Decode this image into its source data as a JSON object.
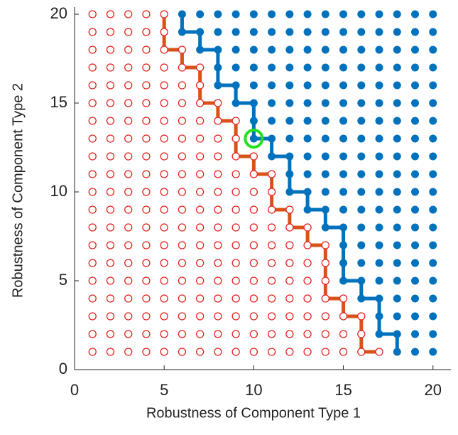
{
  "chart_data": {
    "type": "scatter",
    "xlabel": "Robustness of Component Type 1",
    "ylabel": "Robustness of Component Type 2",
    "xlim": [
      0,
      21
    ],
    "ylim": [
      0,
      20.4
    ],
    "xticks": [
      0,
      5,
      10,
      15,
      20
    ],
    "yticks": [
      0,
      5,
      10,
      15,
      20
    ],
    "lines": [
      {
        "color": "#d95319",
        "x": [
          5,
          5,
          5,
          6,
          6,
          7,
          7,
          7,
          8,
          8,
          9,
          9,
          9,
          10,
          10,
          11,
          11,
          11,
          12,
          12,
          13,
          13,
          14,
          14,
          14,
          14,
          15,
          15,
          16,
          16,
          16,
          17
        ],
        "y": [
          20,
          19,
          18,
          18,
          17,
          17,
          16,
          15,
          15,
          14,
          14,
          13,
          12,
          12,
          11,
          11,
          10,
          9,
          9,
          8,
          8,
          7,
          7,
          6,
          5,
          4,
          4,
          3,
          3,
          2,
          1,
          1
        ]
      },
      {
        "color": "#0072bd",
        "x": [
          6,
          6,
          7,
          7,
          8,
          8,
          8,
          9,
          9,
          10,
          10,
          10,
          11,
          11,
          12,
          12,
          12,
          13,
          13,
          14,
          14,
          15,
          15,
          15,
          15,
          16,
          16,
          17,
          17,
          17,
          18,
          18
        ],
        "y": [
          20,
          19,
          19,
          18,
          18,
          17,
          16,
          16,
          15,
          15,
          14,
          13,
          13,
          12,
          12,
          11,
          10,
          10,
          9,
          9,
          8,
          8,
          7,
          6,
          5,
          5,
          4,
          4,
          3,
          2,
          2,
          1
        ]
      }
    ],
    "series": [
      {
        "color": "#e3211c",
        "marker": "open",
        "rows": [
          {
            "y": 20,
            "x": [
              1,
              2,
              3,
              4,
              5
            ]
          },
          {
            "y": 19,
            "x": [
              1,
              2,
              3,
              4,
              5
            ]
          },
          {
            "y": 18,
            "x": [
              1,
              2,
              3,
              4,
              5,
              6
            ]
          },
          {
            "y": 17,
            "x": [
              1,
              2,
              3,
              4,
              5,
              6,
              7
            ]
          },
          {
            "y": 16,
            "x": [
              1,
              2,
              3,
              4,
              5,
              6,
              7
            ]
          },
          {
            "y": 15,
            "x": [
              1,
              2,
              3,
              4,
              5,
              6,
              7,
              8
            ]
          },
          {
            "y": 14,
            "x": [
              1,
              2,
              3,
              4,
              5,
              6,
              7,
              8,
              9
            ]
          },
          {
            "y": 13,
            "x": [
              1,
              2,
              3,
              4,
              5,
              6,
              7,
              8,
              9
            ]
          },
          {
            "y": 12,
            "x": [
              1,
              2,
              3,
              4,
              5,
              6,
              7,
              8,
              9,
              10
            ]
          },
          {
            "y": 11,
            "x": [
              1,
              2,
              3,
              4,
              5,
              6,
              7,
              8,
              9,
              10,
              11
            ]
          },
          {
            "y": 10,
            "x": [
              1,
              2,
              3,
              4,
              5,
              6,
              7,
              8,
              9,
              10,
              11
            ]
          },
          {
            "y": 9,
            "x": [
              1,
              2,
              3,
              4,
              5,
              6,
              7,
              8,
              9,
              10,
              11,
              12
            ]
          },
          {
            "y": 8,
            "x": [
              1,
              2,
              3,
              4,
              5,
              6,
              7,
              8,
              9,
              10,
              11,
              12,
              13
            ]
          },
          {
            "y": 7,
            "x": [
              1,
              2,
              3,
              4,
              5,
              6,
              7,
              8,
              9,
              10,
              11,
              12,
              13,
              14
            ]
          },
          {
            "y": 6,
            "x": [
              1,
              2,
              3,
              4,
              5,
              6,
              7,
              8,
              9,
              10,
              11,
              12,
              13,
              14
            ]
          },
          {
            "y": 5,
            "x": [
              1,
              2,
              3,
              4,
              5,
              6,
              7,
              8,
              9,
              10,
              11,
              12,
              13,
              14
            ]
          },
          {
            "y": 4,
            "x": [
              1,
              2,
              3,
              4,
              5,
              6,
              7,
              8,
              9,
              10,
              11,
              12,
              13,
              14,
              15
            ]
          },
          {
            "y": 3,
            "x": [
              1,
              2,
              3,
              4,
              5,
              6,
              7,
              8,
              9,
              10,
              11,
              12,
              13,
              14,
              15,
              16
            ]
          },
          {
            "y": 2,
            "x": [
              1,
              2,
              3,
              4,
              5,
              6,
              7,
              8,
              9,
              10,
              11,
              12,
              13,
              14,
              15,
              16
            ]
          },
          {
            "y": 1,
            "x": [
              1,
              2,
              3,
              4,
              5,
              6,
              7,
              8,
              9,
              10,
              11,
              12,
              13,
              14,
              15,
              16,
              17
            ]
          }
        ]
      },
      {
        "color": "#0072bd",
        "marker": "filled",
        "rows": [
          {
            "y": 20,
            "x": [
              6,
              7,
              8,
              9,
              10,
              11,
              12,
              13,
              14,
              15,
              16,
              17,
              18,
              19,
              20
            ]
          },
          {
            "y": 19,
            "x": [
              6,
              7,
              8,
              9,
              10,
              11,
              12,
              13,
              14,
              15,
              16,
              17,
              18,
              19,
              20
            ]
          },
          {
            "y": 18,
            "x": [
              7,
              8,
              9,
              10,
              11,
              12,
              13,
              14,
              15,
              16,
              17,
              18,
              19,
              20
            ]
          },
          {
            "y": 17,
            "x": [
              8,
              9,
              10,
              11,
              12,
              13,
              14,
              15,
              16,
              17,
              18,
              19,
              20
            ]
          },
          {
            "y": 16,
            "x": [
              8,
              9,
              10,
              11,
              12,
              13,
              14,
              15,
              16,
              17,
              18,
              19,
              20
            ]
          },
          {
            "y": 15,
            "x": [
              9,
              10,
              11,
              12,
              13,
              14,
              15,
              16,
              17,
              18,
              19,
              20
            ]
          },
          {
            "y": 14,
            "x": [
              10,
              11,
              12,
              13,
              14,
              15,
              16,
              17,
              18,
              19,
              20
            ]
          },
          {
            "y": 13,
            "x": [
              10,
              11,
              12,
              13,
              14,
              15,
              16,
              17,
              18,
              19,
              20
            ]
          },
          {
            "y": 12,
            "x": [
              11,
              12,
              13,
              14,
              15,
              16,
              17,
              18,
              19,
              20
            ]
          },
          {
            "y": 11,
            "x": [
              12,
              13,
              14,
              15,
              16,
              17,
              18,
              19,
              20
            ]
          },
          {
            "y": 10,
            "x": [
              12,
              13,
              14,
              15,
              16,
              17,
              18,
              19,
              20
            ]
          },
          {
            "y": 9,
            "x": [
              13,
              14,
              15,
              16,
              17,
              18,
              19,
              20
            ]
          },
          {
            "y": 8,
            "x": [
              14,
              15,
              16,
              17,
              18,
              19,
              20
            ]
          },
          {
            "y": 7,
            "x": [
              15,
              16,
              17,
              18,
              19,
              20
            ]
          },
          {
            "y": 6,
            "x": [
              15,
              16,
              17,
              18,
              19,
              20
            ]
          },
          {
            "y": 5,
            "x": [
              15,
              16,
              17,
              18,
              19,
              20
            ]
          },
          {
            "y": 4,
            "x": [
              16,
              17,
              18,
              19,
              20
            ]
          },
          {
            "y": 3,
            "x": [
              17,
              18,
              19,
              20
            ]
          },
          {
            "y": 2,
            "x": [
              17,
              18,
              19,
              20
            ]
          },
          {
            "y": 1,
            "x": [
              18,
              19,
              20
            ]
          }
        ]
      }
    ],
    "highlight": {
      "x": 10,
      "y": 13,
      "color": "#22e01e"
    }
  }
}
